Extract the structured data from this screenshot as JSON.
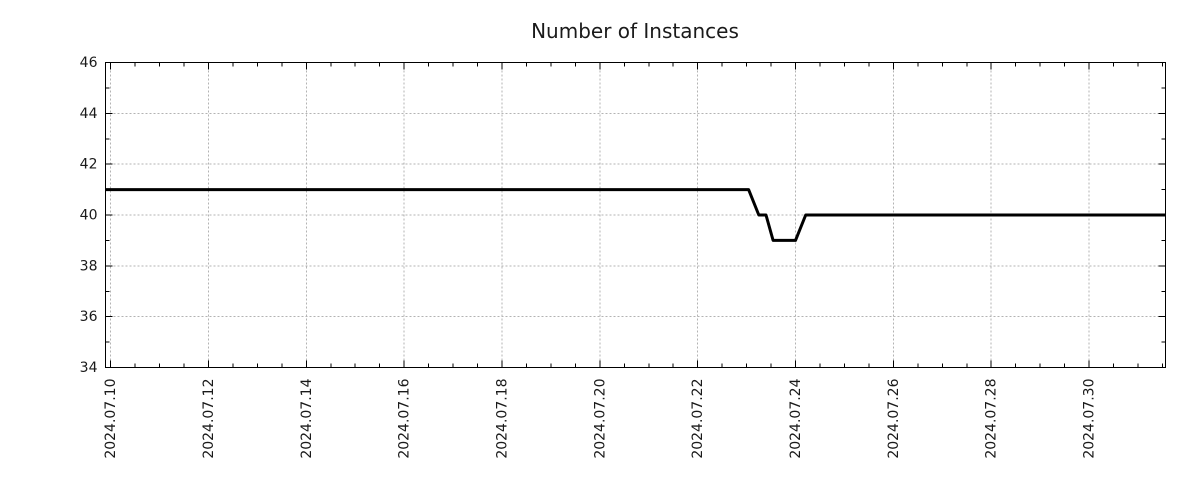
{
  "page": {
    "background": "#ffffff"
  },
  "chart_data": {
    "type": "line",
    "title": "Number of Instances",
    "xlabel": "",
    "ylabel": "",
    "grid": true,
    "legend": "none",
    "line_color": "#000000",
    "grid_color": "#b3b3b3",
    "axis_color": "#000000",
    "text_color": "#1a1a1a",
    "x_type": "datetime",
    "xlim": [
      "2024-07-09 21:30",
      "2024-07-31 13:30"
    ],
    "ylim": [
      34,
      46
    ],
    "x_major_tick_labels": [
      "2024.07.10",
      "2024.07.12",
      "2024.07.14",
      "2024.07.16",
      "2024.07.18",
      "2024.07.20",
      "2024.07.22",
      "2024.07.24",
      "2024.07.26",
      "2024.07.28",
      "2024.07.30"
    ],
    "x_minor_tick_hours": 12,
    "y_major_ticks": [
      34,
      36,
      38,
      40,
      42,
      44,
      46
    ],
    "y_minor_tick_step": 1,
    "series": [
      {
        "name": "Number of Instances",
        "values_description": "instance count over time",
        "points": [
          [
            "2024-07-10 00:00",
            41
          ],
          [
            "2024-07-23 01:00",
            41
          ],
          [
            "2024-07-23 06:00",
            40
          ],
          [
            "2024-07-23 09:30",
            40
          ],
          [
            "2024-07-23 13:00",
            39
          ],
          [
            "2024-07-24 00:00",
            39
          ],
          [
            "2024-07-24 05:00",
            40
          ],
          [
            "2024-07-31 13:30",
            40
          ]
        ]
      }
    ]
  }
}
